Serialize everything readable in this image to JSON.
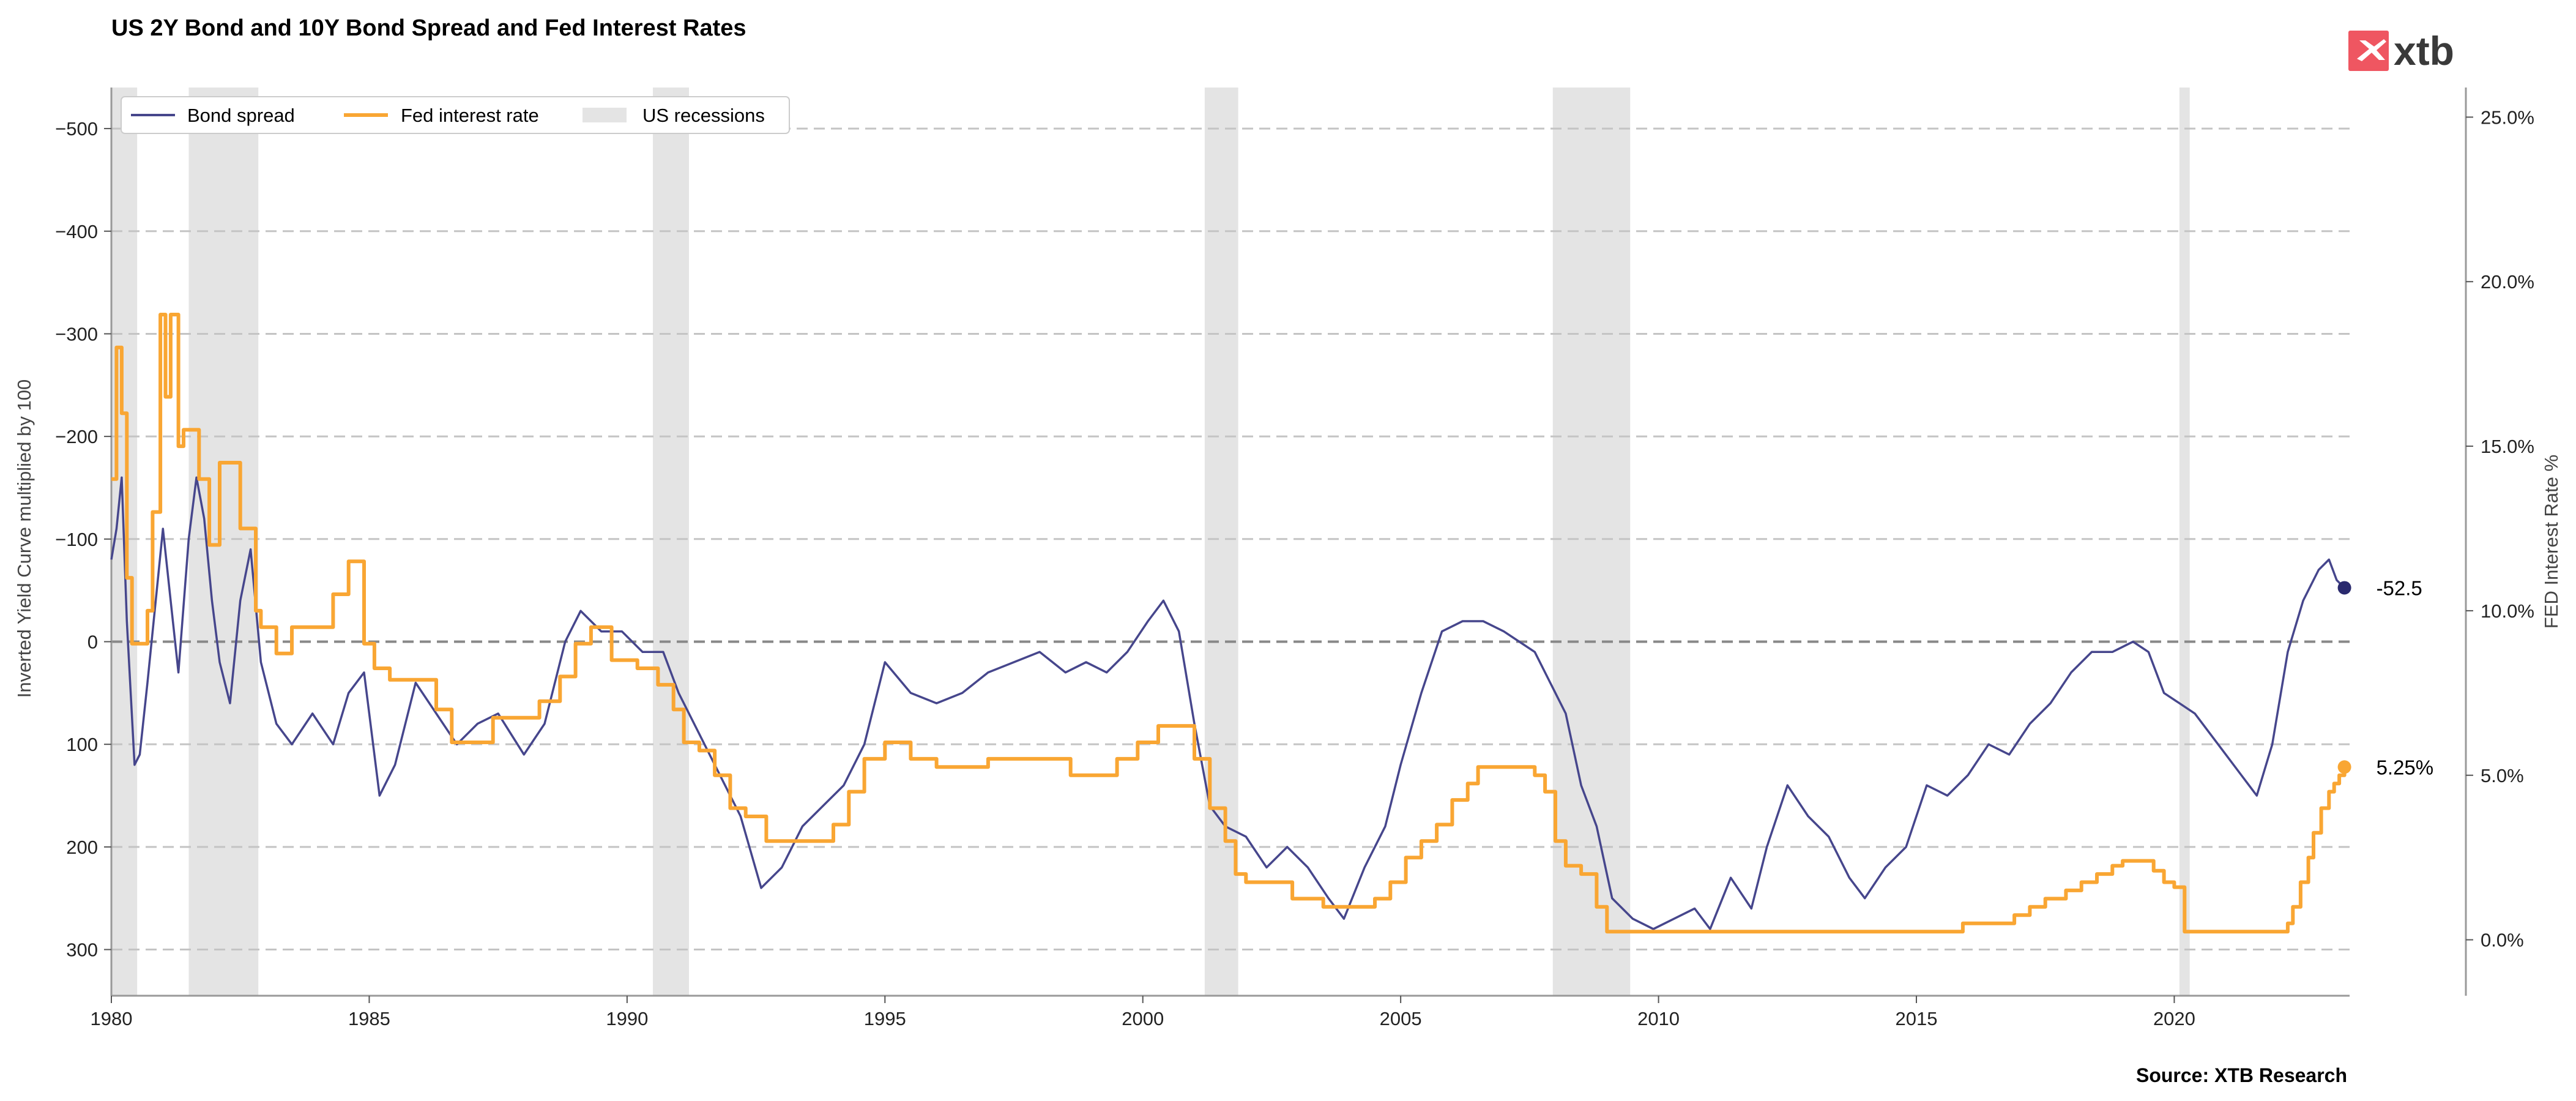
{
  "chart_data": {
    "type": "line",
    "title": "US 2Y Bond and 10Y Bond Spread and Fed Interest Rates",
    "source": "Source: XTB Research",
    "logo_text": "xtb",
    "xlim": [
      1980,
      2023.4
    ],
    "x_ticks": [
      1980,
      1985,
      1990,
      1995,
      2000,
      2005,
      2010,
      2015,
      2020
    ],
    "left_axis": {
      "label": "Inverted Yield Curve multiplied by 100",
      "inverted": true,
      "ylim": [
        -540,
        345
      ],
      "ticks": [
        -500,
        -400,
        -300,
        -200,
        -100,
        0,
        100,
        200,
        300
      ],
      "tick_labels": [
        "−500",
        "−400",
        "−300",
        "−200",
        "−100",
        "0",
        "100",
        "200",
        "300"
      ]
    },
    "right_axis": {
      "label": "FED Interest Rate %",
      "ylim": [
        -1.7,
        25.9
      ],
      "ticks": [
        0,
        5,
        10,
        15,
        20,
        25
      ],
      "tick_labels": [
        "0.0%",
        "5.0%",
        "10.0%",
        "15.0%",
        "20.0%",
        "25.0%"
      ]
    },
    "grid": "horizontal dashed",
    "legend": {
      "position": "top-left",
      "entries": [
        "Bond spread",
        "Fed interest rate",
        "US recessions"
      ]
    },
    "colors": {
      "bond_spread": "#46468c",
      "fed_rate": "#f9a633",
      "recession": "#e4e4e4"
    },
    "recessions": [
      {
        "start": 1980.0,
        "end": 1980.5
      },
      {
        "start": 1981.5,
        "end": 1982.85
      },
      {
        "start": 1990.5,
        "end": 1991.2
      },
      {
        "start": 2001.2,
        "end": 2001.85
      },
      {
        "start": 2007.95,
        "end": 2009.45
      },
      {
        "start": 2020.1,
        "end": 2020.3
      }
    ],
    "series": [
      {
        "name": "Bond spread",
        "axis": "left",
        "x": [
          1980.0,
          1980.1,
          1980.2,
          1980.3,
          1980.45,
          1980.55,
          1980.7,
          1980.9,
          1981.0,
          1981.15,
          1981.3,
          1981.5,
          1981.65,
          1981.8,
          1981.95,
          1982.1,
          1982.3,
          1982.5,
          1982.7,
          1982.9,
          1983.2,
          1983.5,
          1983.9,
          1984.3,
          1984.6,
          1984.9,
          1985.2,
          1985.5,
          1985.9,
          1986.3,
          1986.7,
          1987.1,
          1987.5,
          1988.0,
          1988.4,
          1988.8,
          1989.1,
          1989.5,
          1989.9,
          1990.3,
          1990.7,
          1991.0,
          1991.4,
          1991.8,
          1992.2,
          1992.6,
          1993.0,
          1993.4,
          1993.8,
          1994.2,
          1994.6,
          1995.0,
          1995.5,
          1996.0,
          1996.5,
          1997.0,
          1997.5,
          1998.0,
          1998.5,
          1998.9,
          1999.3,
          1999.7,
          2000.1,
          2000.4,
          2000.7,
          2001.0,
          2001.3,
          2001.6,
          2002.0,
          2002.4,
          2002.8,
          2003.2,
          2003.6,
          2003.9,
          2004.3,
          2004.7,
          2005.0,
          2005.4,
          2005.8,
          2006.2,
          2006.6,
          2007.0,
          2007.3,
          2007.6,
          2007.9,
          2008.2,
          2008.5,
          2008.8,
          2009.1,
          2009.5,
          2009.9,
          2010.3,
          2010.7,
          2011.0,
          2011.4,
          2011.8,
          2012.1,
          2012.5,
          2012.9,
          2013.3,
          2013.7,
          2014.0,
          2014.4,
          2014.8,
          2015.2,
          2015.6,
          2016.0,
          2016.4,
          2016.8,
          2017.2,
          2017.6,
          2018.0,
          2018.4,
          2018.8,
          2019.2,
          2019.5,
          2019.8,
          2020.1,
          2020.4,
          2020.7,
          2021.0,
          2021.3,
          2021.6,
          2021.9,
          2022.2,
          2022.5,
          2022.8,
          2023.0,
          2023.15,
          2023.3
        ],
        "values": [
          -80,
          -110,
          -160,
          -20,
          120,
          110,
          40,
          -60,
          -110,
          -40,
          30,
          -100,
          -160,
          -120,
          -40,
          20,
          60,
          -40,
          -90,
          20,
          80,
          100,
          70,
          100,
          50,
          30,
          150,
          120,
          40,
          70,
          100,
          80,
          70,
          110,
          80,
          0,
          -30,
          -10,
          -10,
          10,
          10,
          50,
          90,
          130,
          170,
          240,
          220,
          180,
          160,
          140,
          100,
          20,
          50,
          60,
          50,
          30,
          20,
          10,
          30,
          20,
          30,
          10,
          -20,
          -40,
          -10,
          80,
          160,
          180,
          190,
          220,
          200,
          220,
          250,
          270,
          220,
          180,
          120,
          50,
          -10,
          -20,
          -20,
          -10,
          0,
          10,
          40,
          70,
          140,
          180,
          250,
          270,
          280,
          270,
          260,
          280,
          230,
          260,
          200,
          140,
          170,
          190,
          230,
          250,
          220,
          200,
          140,
          150,
          130,
          100,
          110,
          80,
          60,
          30,
          10,
          10,
          0,
          10,
          50,
          60,
          70,
          90,
          110,
          130,
          150,
          100,
          10,
          -40,
          -70,
          -80,
          -60,
          -52.5
        ]
      },
      {
        "name": "Fed interest rate",
        "axis": "right",
        "step": true,
        "x": [
          1980.0,
          1980.1,
          1980.2,
          1980.3,
          1980.4,
          1980.5,
          1980.7,
          1980.8,
          1980.95,
          1981.05,
          1981.15,
          1981.3,
          1981.4,
          1981.55,
          1981.7,
          1981.9,
          1982.1,
          1982.5,
          1982.8,
          1982.9,
          1983.2,
          1983.5,
          1983.9,
          1984.3,
          1984.6,
          1984.9,
          1985.1,
          1985.4,
          1985.8,
          1986.3,
          1986.6,
          1987.0,
          1987.4,
          1987.9,
          1988.3,
          1988.7,
          1989.0,
          1989.3,
          1989.7,
          1990.2,
          1990.6,
          1990.9,
          1991.1,
          1991.4,
          1991.7,
          1992.0,
          1992.3,
          1992.7,
          1993.0,
          1994.0,
          1994.3,
          1994.6,
          1995.0,
          1995.5,
          1996.0,
          1997.0,
          1998.6,
          1999.0,
          1999.5,
          1999.9,
          2000.3,
          2001.0,
          2001.3,
          2001.6,
          2001.8,
          2002.0,
          2002.9,
          2003.5,
          2004.5,
          2004.8,
          2005.1,
          2005.4,
          2005.7,
          2006.0,
          2006.3,
          2006.5,
          2007.6,
          2007.8,
          2008.0,
          2008.2,
          2008.5,
          2008.8,
          2009.0,
          2015.9,
          2016.9,
          2017.2,
          2017.5,
          2017.9,
          2018.2,
          2018.5,
          2018.8,
          2019.0,
          2019.4,
          2019.6,
          2019.8,
          2020.0,
          2020.2,
          2022.2,
          2022.3,
          2022.45,
          2022.6,
          2022.7,
          2022.85,
          2023.0,
          2023.1,
          2023.2,
          2023.3
        ],
        "values": [
          14.0,
          18.0,
          16.0,
          11.0,
          9.0,
          9.0,
          10.0,
          13.0,
          19.0,
          16.5,
          19.0,
          15.0,
          15.5,
          15.5,
          14.0,
          12.0,
          14.5,
          12.5,
          10.0,
          9.5,
          8.7,
          9.5,
          9.5,
          10.5,
          11.5,
          9.0,
          8.25,
          7.9,
          7.9,
          7.0,
          6.0,
          6.0,
          6.75,
          6.75,
          7.25,
          8.0,
          9.0,
          9.5,
          8.5,
          8.25,
          7.75,
          7.0,
          6.0,
          5.75,
          5.0,
          4.0,
          3.75,
          3.0,
          3.0,
          3.5,
          4.5,
          5.5,
          6.0,
          5.5,
          5.25,
          5.5,
          5.0,
          5.0,
          5.5,
          6.0,
          6.5,
          5.5,
          4.0,
          3.0,
          2.0,
          1.75,
          1.25,
          1.0,
          1.25,
          1.75,
          2.5,
          3.0,
          3.5,
          4.25,
          4.75,
          5.25,
          5.0,
          4.5,
          3.0,
          2.25,
          2.0,
          1.0,
          0.25,
          0.5,
          0.75,
          1.0,
          1.25,
          1.5,
          1.75,
          2.0,
          2.25,
          2.4,
          2.4,
          2.1,
          1.75,
          1.6,
          0.25,
          0.5,
          1.0,
          1.75,
          2.5,
          3.25,
          4.0,
          4.5,
          4.75,
          5.0,
          5.25
        ]
      }
    ],
    "annotations": [
      {
        "series": "Bond spread",
        "x": 2023.3,
        "value": -52.5,
        "label": "-52.5"
      },
      {
        "series": "Fed interest rate",
        "x": 2023.3,
        "value": 5.25,
        "label": "5.25%"
      }
    ]
  }
}
